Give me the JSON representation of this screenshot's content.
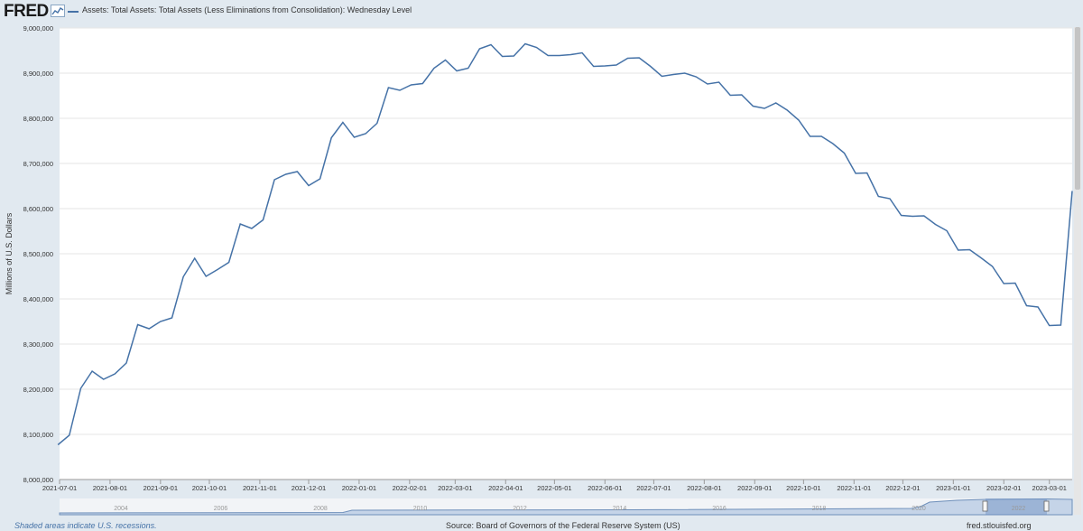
{
  "header": {
    "logo_text": "FRED",
    "legend_label": "Assets: Total Assets: Total Assets (Less Eliminations from Consolidation): Wednesday Level"
  },
  "footer": {
    "recession_note": "Shaded areas indicate U.S. recessions.",
    "source": "Source: Board of Governors of the Federal Reserve System (US)",
    "site": "fred.stlouisfed.org"
  },
  "navigator": {
    "labels": [
      "2004",
      "2006",
      "2008",
      "2010",
      "2012",
      "2014",
      "2016",
      "2018",
      "2020",
      "2022"
    ]
  },
  "colors": {
    "series": "#4572a7",
    "plot_background": "#ffffff",
    "page_background": "#e1e9f0",
    "grid": "#e6e6e6"
  },
  "icons": [
    "fred-chart-icon"
  ],
  "chart_data": {
    "type": "line",
    "title": "",
    "xlabel": "",
    "ylabel": "Millions of U.S. Dollars",
    "ylim": [
      8000000,
      9000000
    ],
    "xlim": [
      "2021-07-01",
      "2023-03-15"
    ],
    "grid": true,
    "legend": "top-left",
    "y_ticks": [
      "8,000,000",
      "8,100,000",
      "8,200,000",
      "8,300,000",
      "8,400,000",
      "8,500,000",
      "8,600,000",
      "8,700,000",
      "8,800,000",
      "8,900,000",
      "9,000,000"
    ],
    "y_tick_values": [
      8000000,
      8100000,
      8200000,
      8300000,
      8400000,
      8500000,
      8600000,
      8700000,
      8800000,
      8900000,
      9000000
    ],
    "x_ticks": [
      "2021-07-01",
      "2021-08-01",
      "2021-09-01",
      "2021-10-01",
      "2021-11-01",
      "2021-12-01",
      "2022-01-01",
      "2022-02-01",
      "2022-03-01",
      "2022-04-01",
      "2022-05-01",
      "2022-06-01",
      "2022-07-01",
      "2022-08-01",
      "2022-09-01",
      "2022-10-01",
      "2022-11-01",
      "2022-12-01",
      "2023-01-01",
      "2023-02-01",
      "2023-03-01"
    ],
    "series": [
      {
        "name": "Assets: Total Assets: Total Assets (Less Eliminations from Consolidation): Wednesday Level",
        "x": [
          "2021-06-30",
          "2021-07-07",
          "2021-07-14",
          "2021-07-21",
          "2021-07-28",
          "2021-08-04",
          "2021-08-11",
          "2021-08-18",
          "2021-08-25",
          "2021-09-01",
          "2021-09-08",
          "2021-09-15",
          "2021-09-22",
          "2021-09-29",
          "2021-10-06",
          "2021-10-13",
          "2021-10-20",
          "2021-10-27",
          "2021-11-03",
          "2021-11-10",
          "2021-11-17",
          "2021-11-24",
          "2021-12-01",
          "2021-12-08",
          "2021-12-15",
          "2021-12-22",
          "2021-12-29",
          "2022-01-05",
          "2022-01-12",
          "2022-01-19",
          "2022-01-26",
          "2022-02-02",
          "2022-02-09",
          "2022-02-16",
          "2022-02-23",
          "2022-03-02",
          "2022-03-09",
          "2022-03-16",
          "2022-03-23",
          "2022-03-30",
          "2022-04-06",
          "2022-04-13",
          "2022-04-20",
          "2022-04-27",
          "2022-05-04",
          "2022-05-11",
          "2022-05-18",
          "2022-05-25",
          "2022-06-01",
          "2022-06-08",
          "2022-06-15",
          "2022-06-22",
          "2022-06-29",
          "2022-07-06",
          "2022-07-13",
          "2022-07-20",
          "2022-07-27",
          "2022-08-03",
          "2022-08-10",
          "2022-08-17",
          "2022-08-24",
          "2022-08-31",
          "2022-09-07",
          "2022-09-14",
          "2022-09-21",
          "2022-09-28",
          "2022-10-05",
          "2022-10-12",
          "2022-10-19",
          "2022-10-26",
          "2022-11-02",
          "2022-11-09",
          "2022-11-16",
          "2022-11-23",
          "2022-11-30",
          "2022-12-07",
          "2022-12-14",
          "2022-12-21",
          "2022-12-28",
          "2023-01-04",
          "2023-01-11",
          "2023-01-18",
          "2023-01-25",
          "2023-02-01",
          "2023-02-08",
          "2023-02-15",
          "2023-02-22",
          "2023-03-01",
          "2023-03-08",
          "2023-03-15"
        ],
        "values": [
          8077000,
          8098000,
          8202000,
          8240000,
          8222000,
          8234000,
          8258000,
          8343000,
          8334000,
          8350000,
          8358000,
          8449000,
          8490000,
          8450000,
          8465000,
          8481000,
          8566000,
          8556000,
          8575000,
          8664000,
          8676000,
          8682000,
          8651000,
          8666000,
          8757000,
          8791000,
          8758000,
          8766000,
          8789000,
          8868000,
          8862000,
          8874000,
          8877000,
          8911000,
          8929000,
          8905000,
          8911000,
          8954000,
          8963000,
          8937000,
          8938000,
          8965000,
          8957000,
          8939000,
          8939000,
          8941000,
          8945000,
          8915000,
          8916000,
          8918000,
          8933000,
          8934000,
          8915000,
          8893000,
          8897000,
          8900000,
          8892000,
          8876000,
          8880000,
          8851000,
          8852000,
          8827000,
          8822000,
          8834000,
          8818000,
          8796000,
          8760000,
          8760000,
          8744000,
          8723000,
          8678000,
          8679000,
          8627000,
          8622000,
          8585000,
          8583000,
          8584000,
          8565000,
          8551000,
          8508000,
          8509000,
          8491000,
          8472000,
          8434000,
          8435000,
          8385000,
          8382000,
          8341000,
          8342000,
          8639000
        ]
      }
    ]
  }
}
